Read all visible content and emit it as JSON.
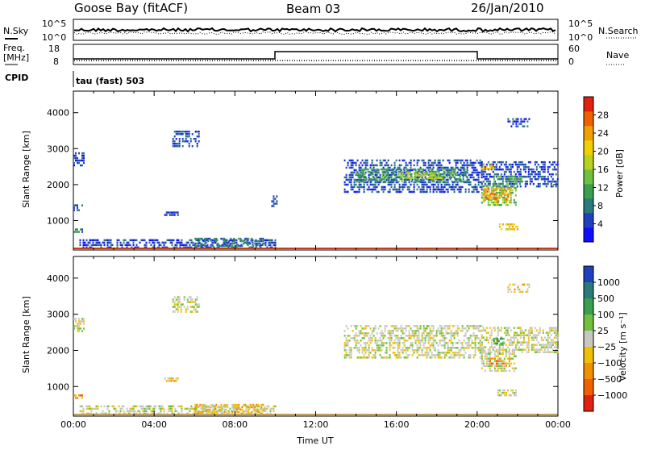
{
  "header": {
    "station": "Goose Bay (fitACF)",
    "beam": "Beam 03",
    "date": "26/Jan/2010"
  },
  "params": {
    "nsky_label": "N.Sky",
    "nsearch_label": "N.Search",
    "freq_label_line1": "Freq.",
    "freq_label_line2": "[MHz]",
    "nave_label": "Nave",
    "cpid_label": "CPID",
    "cpid_value": "tau (fast) 503",
    "noise_ticks_left": [
      "10^5",
      "10^0"
    ],
    "noise_ticks_right": [
      "10^5",
      "10^0"
    ],
    "freq_ticks": [
      "18",
      "8"
    ],
    "nave_ticks": [
      "60",
      "0"
    ]
  },
  "chart_data": [
    {
      "type": "heatmap",
      "name": "power-panel",
      "ylabel": "Slant Range [km]",
      "y_ticks": [
        "1000",
        "2000",
        "3000",
        "4000"
      ],
      "ylim": [
        180,
        4600
      ],
      "xlim_hours": [
        0,
        24
      ],
      "colorbar": {
        "label": "Power [dB]",
        "ticks": [
          "4",
          "8",
          "12",
          "16",
          "20",
          "24",
          "28"
        ],
        "colors": [
          "#1010ff",
          "#2040c0",
          "#2a7a7a",
          "#3aa050",
          "#70c040",
          "#b8d020",
          "#f0d000",
          "#f0a000",
          "#f06000",
          "#e02010"
        ]
      },
      "regions": [
        {
          "t0": 0.0,
          "t1": 0.5,
          "r0": 2550,
          "r1": 2900,
          "level": 1
        },
        {
          "t0": 4.9,
          "t1": 6.2,
          "r0": 3050,
          "r1": 3500,
          "level": 1
        },
        {
          "t0": 0.0,
          "t1": 0.4,
          "r0": 650,
          "r1": 780,
          "level": 2
        },
        {
          "t0": 0.0,
          "t1": 0.4,
          "r0": 1250,
          "r1": 1450,
          "level": 1
        },
        {
          "t0": 4.5,
          "t1": 5.2,
          "r0": 1120,
          "r1": 1250,
          "level": 1
        },
        {
          "t0": 9.8,
          "t1": 10.1,
          "r0": 1400,
          "r1": 1700,
          "level": 1
        },
        {
          "t0": 0.3,
          "t1": 10.0,
          "r0": 220,
          "r1": 480,
          "level": 1
        },
        {
          "t0": 6.0,
          "t1": 9.5,
          "r0": 280,
          "r1": 520,
          "level": 2
        },
        {
          "t0": 13.4,
          "t1": 20.2,
          "r0": 1800,
          "r1": 2700,
          "level": 1
        },
        {
          "t0": 14.0,
          "t1": 19.5,
          "r0": 2050,
          "r1": 2450,
          "level": 3
        },
        {
          "t0": 16.2,
          "t1": 18.2,
          "r0": 2150,
          "r1": 2350,
          "level": 5
        },
        {
          "t0": 20.2,
          "t1": 24.0,
          "r0": 1950,
          "r1": 2650,
          "level": 1
        },
        {
          "t0": 20.8,
          "t1": 22.2,
          "r0": 2000,
          "r1": 2250,
          "level": 3
        },
        {
          "t0": 20.2,
          "t1": 21.9,
          "r0": 1450,
          "r1": 2000,
          "level": 4
        },
        {
          "t0": 20.3,
          "t1": 21.6,
          "r0": 1550,
          "r1": 1900,
          "level": 7
        },
        {
          "t0": 21.0,
          "t1": 22.0,
          "r0": 760,
          "r1": 920,
          "level": 6
        },
        {
          "t0": 21.5,
          "t1": 22.6,
          "r0": 3600,
          "r1": 3850,
          "level": 1
        },
        {
          "t0": 20.2,
          "t1": 20.8,
          "r0": 2450,
          "r1": 2600,
          "level": 7
        }
      ]
    },
    {
      "type": "heatmap",
      "name": "velocity-panel",
      "ylabel": "Slant Range [km]",
      "xlabel": "Time UT",
      "x_ticks": [
        "00:00",
        "04:00",
        "08:00",
        "12:00",
        "16:00",
        "20:00",
        "00:00"
      ],
      "y_ticks": [
        "1000",
        "2000",
        "3000",
        "4000"
      ],
      "ylim": [
        180,
        4600
      ],
      "xlim_hours": [
        0,
        24
      ],
      "colorbar": {
        "label": "Velocity [m s⁻¹]",
        "ticks": [
          "1000",
          "500",
          "100",
          "25",
          "−25",
          "−100",
          "−500",
          "−1000"
        ],
        "colors": [
          "#2040c0",
          "#2a7a7a",
          "#3aa050",
          "#70c040",
          "#c8c8c0",
          "#f0c000",
          "#f09000",
          "#f06000",
          "#e02010"
        ]
      },
      "regions": [
        {
          "t0": 0.0,
          "t1": 0.5,
          "r0": 2550,
          "r1": 2900,
          "level": 4
        },
        {
          "t0": 4.9,
          "t1": 6.2,
          "r0": 3050,
          "r1": 3500,
          "level": 4
        },
        {
          "t0": 0.0,
          "t1": 0.4,
          "r0": 650,
          "r1": 780,
          "level": 6
        },
        {
          "t0": 4.5,
          "t1": 5.2,
          "r0": 1120,
          "r1": 1250,
          "level": 5
        },
        {
          "t0": 0.3,
          "t1": 10.0,
          "r0": 220,
          "r1": 480,
          "level": 4
        },
        {
          "t0": 6.0,
          "t1": 9.5,
          "r0": 280,
          "r1": 520,
          "level": 5
        },
        {
          "t0": 13.4,
          "t1": 20.2,
          "r0": 1800,
          "r1": 2700,
          "level": 4
        },
        {
          "t0": 20.2,
          "t1": 24.0,
          "r0": 1950,
          "r1": 2650,
          "level": 4
        },
        {
          "t0": 20.2,
          "t1": 21.9,
          "r0": 1450,
          "r1": 2000,
          "level": 4
        },
        {
          "t0": 20.6,
          "t1": 21.6,
          "r0": 1550,
          "r1": 1800,
          "level": 6
        },
        {
          "t0": 20.8,
          "t1": 21.3,
          "r0": 2150,
          "r1": 2350,
          "level": 2
        },
        {
          "t0": 21.0,
          "t1": 22.0,
          "r0": 760,
          "r1": 920,
          "level": 4
        },
        {
          "t0": 21.5,
          "t1": 22.6,
          "r0": 3600,
          "r1": 3850,
          "level": 5
        }
      ]
    }
  ]
}
